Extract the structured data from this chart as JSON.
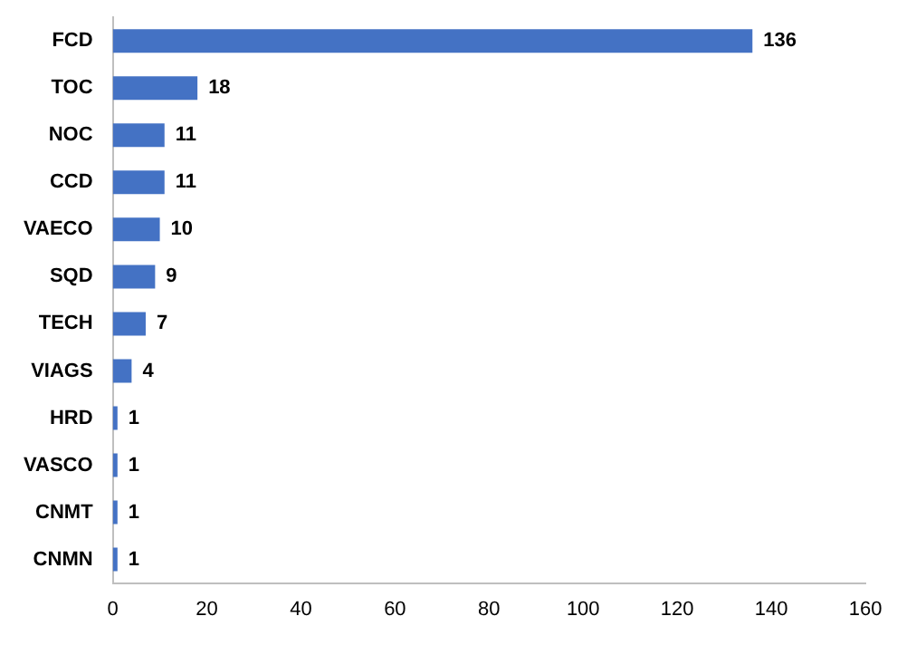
{
  "chart_data": {
    "type": "bar",
    "orientation": "horizontal",
    "categories": [
      "FCD",
      "TOC",
      "NOC",
      "CCD",
      "VAECO",
      "SQD",
      "TECH",
      "VIAGS",
      "HRD",
      "VASCO",
      "CNMT",
      "CNMN"
    ],
    "values": [
      136,
      18,
      11,
      11,
      10,
      9,
      7,
      4,
      1,
      1,
      1,
      1
    ],
    "color": "#4472c4",
    "xlim": [
      0,
      160
    ],
    "xticks": [
      0,
      20,
      40,
      60,
      80,
      100,
      120,
      140,
      160
    ],
    "grid": false,
    "data_labels": true
  }
}
